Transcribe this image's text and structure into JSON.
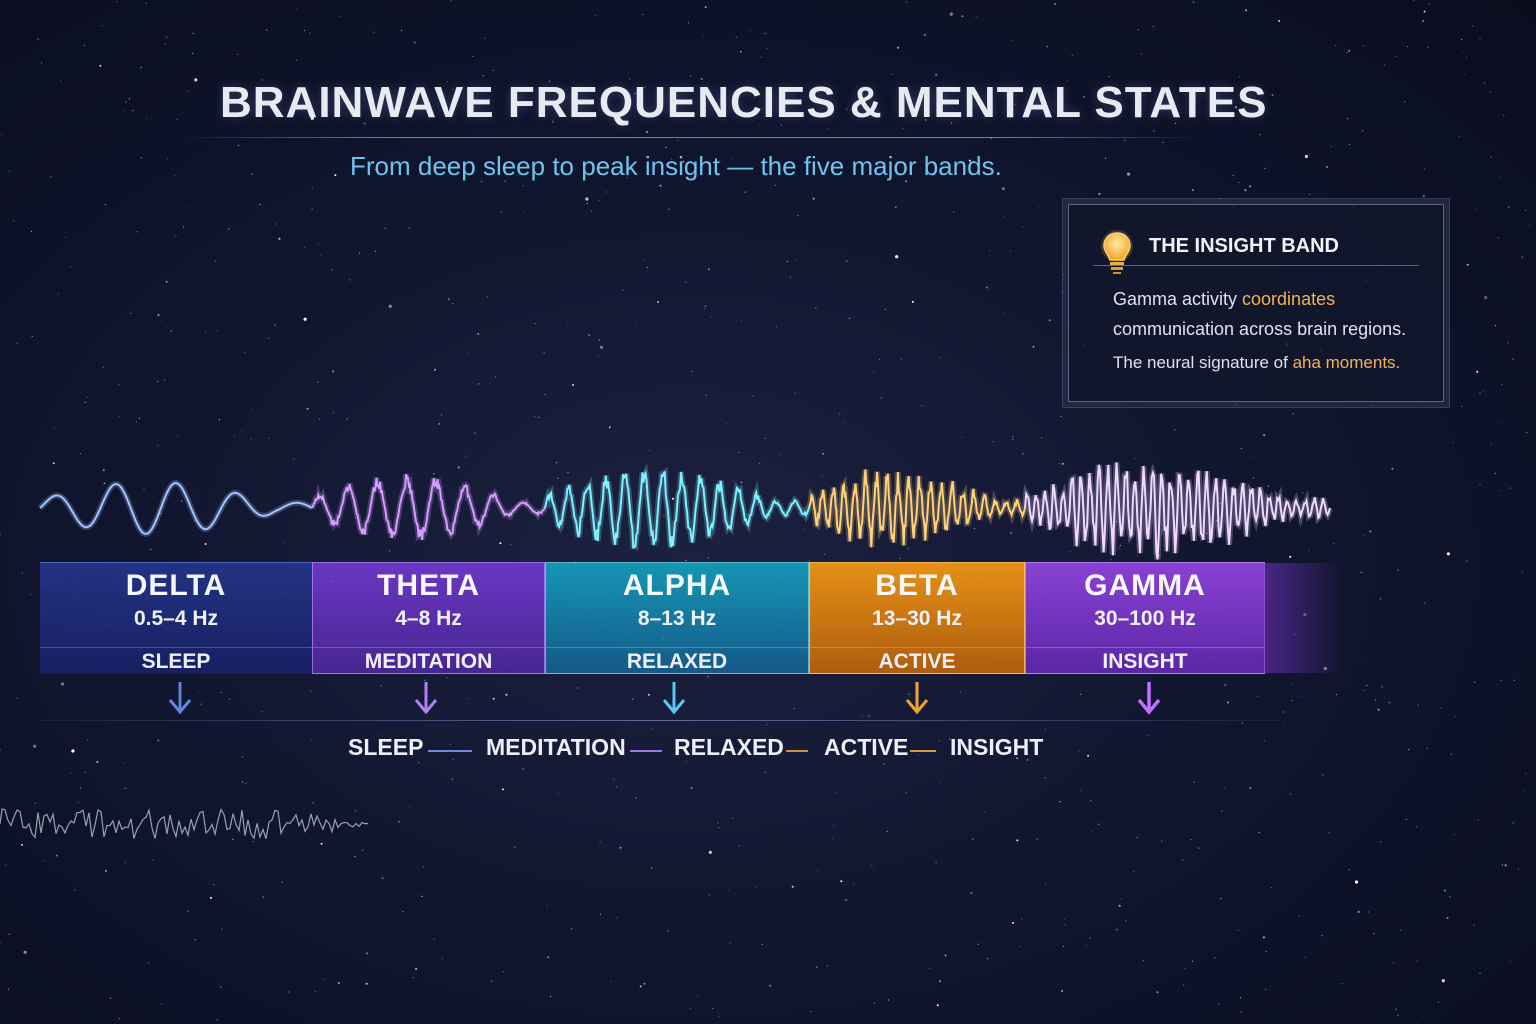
{
  "header": {
    "title": "BRAINWAVE FREQUENCIES & MENTAL STATES",
    "subtitle": "From deep sleep to peak insight — the five major bands."
  },
  "callout": {
    "icon": "lightbulb-icon",
    "title": "THE INSIGHT BAND",
    "line1_a": "Gamma activity ",
    "line1_hl": "coordinates",
    "line2": "communication across brain regions.",
    "line3_a": "The neural signature of ",
    "line3_hl": "aha moments."
  },
  "bands": [
    {
      "name": "DELTA",
      "freq": "0.5–4 Hz",
      "state": "SLEEP",
      "color": "#3f66d6",
      "wave_color": "#9fc4ff"
    },
    {
      "name": "THETA",
      "freq": "4–8 Hz",
      "state": "MEDITATION",
      "color": "#8a4fe0",
      "wave_color": "#d69cff"
    },
    {
      "name": "ALPHA",
      "freq": "8–13 Hz",
      "state": "RELAXED",
      "color": "#1fa9c6",
      "wave_color": "#7ff0ff"
    },
    {
      "name": "BETA",
      "freq": "13–30 Hz",
      "state": "ACTIVE",
      "color": "#f09a1c",
      "wave_color": "#ffd27a"
    },
    {
      "name": "GAMMA",
      "freq": "30–100 Hz",
      "state": "INSIGHT",
      "color": "#a45cf0",
      "wave_color": "#f0d8ff"
    }
  ],
  "progression": [
    "SLEEP",
    "MEDITATION",
    "RELAXED",
    "ACTIVE",
    "INSIGHT"
  ]
}
